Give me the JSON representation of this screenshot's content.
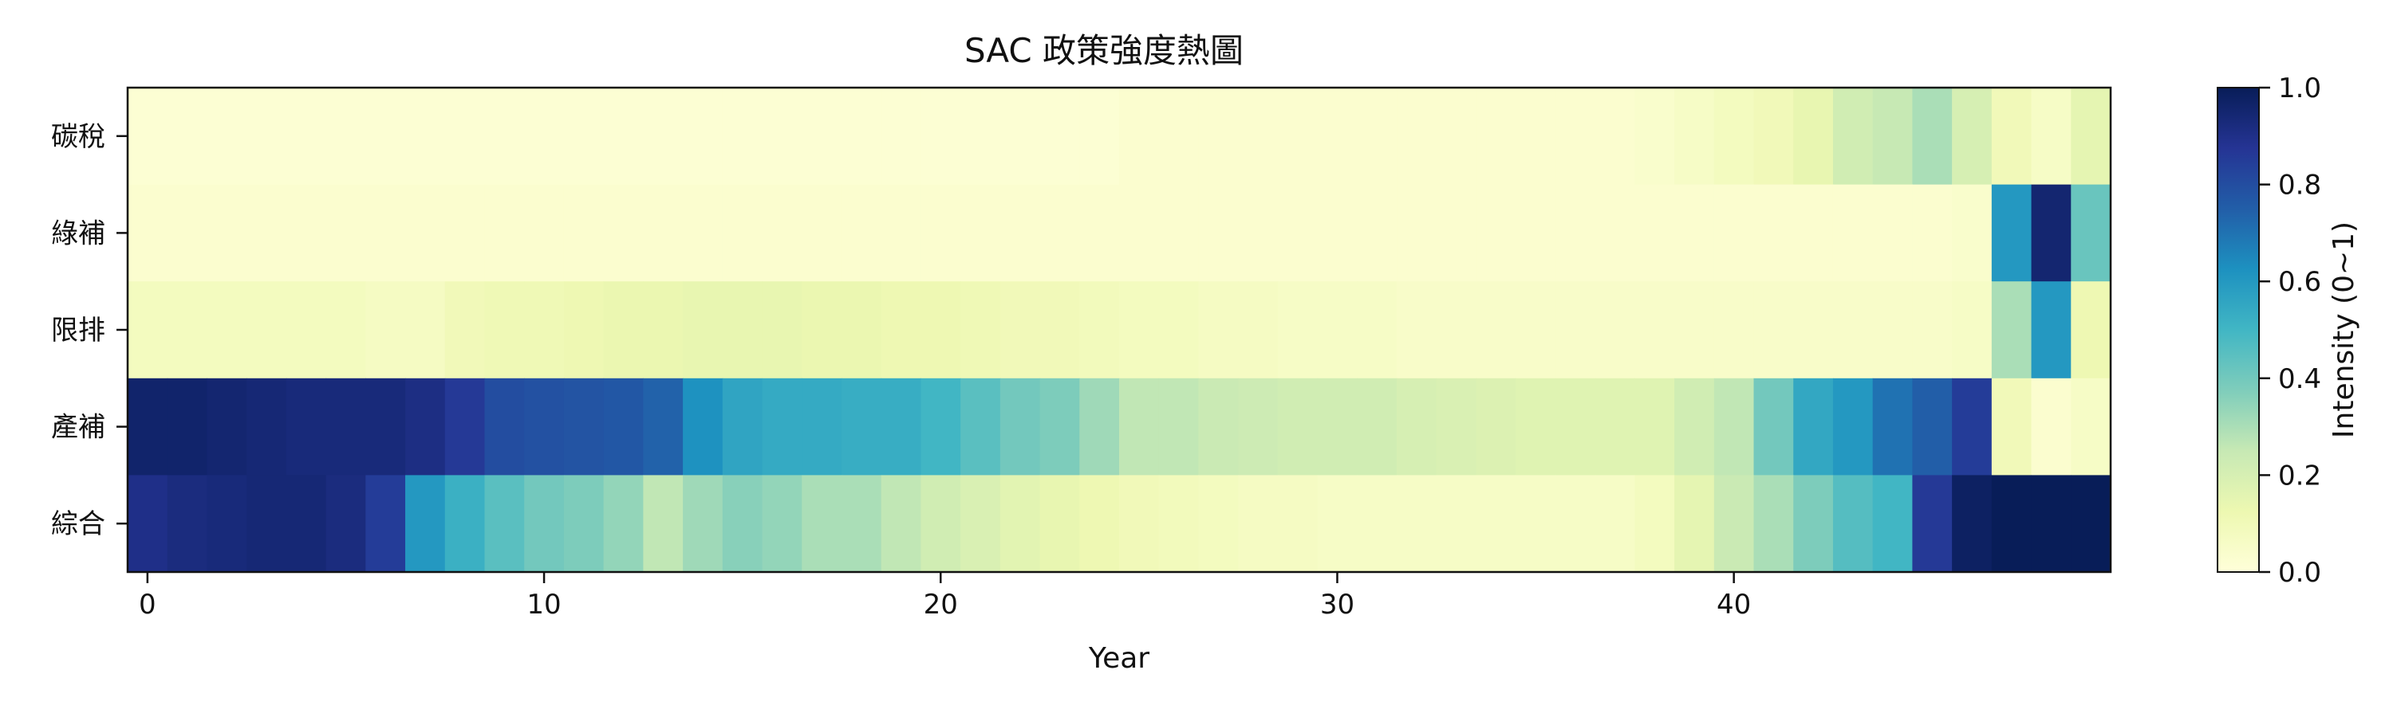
{
  "chart_data": {
    "type": "heatmap",
    "title": "SAC 政策強度熱圖",
    "xlabel": "Year",
    "ylabel": "",
    "x_ticks": [
      0,
      10,
      20,
      30,
      40
    ],
    "x_range": [
      0,
      49
    ],
    "rows": [
      "碳稅",
      "綠補",
      "限排",
      "產補",
      "綜合"
    ],
    "colorbar": {
      "label": "Intensity (0~1)",
      "range": [
        0.0,
        1.0
      ],
      "ticks": [
        "0.0",
        "0.2",
        "0.4",
        "0.6",
        "0.8",
        "1.0"
      ],
      "colormap": "YlGnBu"
    },
    "values": [
      [
        0.02,
        0.02,
        0.02,
        0.02,
        0.02,
        0.02,
        0.02,
        0.02,
        0.02,
        0.02,
        0.02,
        0.02,
        0.02,
        0.02,
        0.02,
        0.02,
        0.02,
        0.02,
        0.02,
        0.02,
        0.02,
        0.02,
        0.02,
        0.02,
        0.02,
        0.03,
        0.03,
        0.03,
        0.03,
        0.03,
        0.03,
        0.03,
        0.03,
        0.03,
        0.03,
        0.03,
        0.03,
        0.03,
        0.04,
        0.06,
        0.08,
        0.1,
        0.14,
        0.22,
        0.25,
        0.3,
        0.2,
        0.1,
        0.06,
        0.15
      ],
      [
        0.03,
        0.03,
        0.03,
        0.03,
        0.03,
        0.03,
        0.03,
        0.03,
        0.03,
        0.03,
        0.03,
        0.03,
        0.03,
        0.03,
        0.03,
        0.03,
        0.03,
        0.03,
        0.03,
        0.03,
        0.03,
        0.03,
        0.03,
        0.03,
        0.03,
        0.03,
        0.03,
        0.03,
        0.03,
        0.03,
        0.03,
        0.03,
        0.03,
        0.03,
        0.03,
        0.03,
        0.03,
        0.03,
        0.03,
        0.03,
        0.03,
        0.03,
        0.03,
        0.03,
        0.03,
        0.03,
        0.04,
        0.6,
        0.95,
        0.42
      ],
      [
        0.08,
        0.08,
        0.08,
        0.08,
        0.08,
        0.08,
        0.07,
        0.07,
        0.1,
        0.11,
        0.11,
        0.12,
        0.13,
        0.13,
        0.14,
        0.14,
        0.14,
        0.13,
        0.13,
        0.12,
        0.12,
        0.11,
        0.1,
        0.1,
        0.09,
        0.08,
        0.08,
        0.07,
        0.07,
        0.06,
        0.06,
        0.06,
        0.05,
        0.05,
        0.05,
        0.05,
        0.05,
        0.05,
        0.05,
        0.05,
        0.05,
        0.05,
        0.05,
        0.05,
        0.05,
        0.05,
        0.06,
        0.3,
        0.6,
        0.12
      ],
      [
        0.96,
        0.96,
        0.95,
        0.94,
        0.93,
        0.93,
        0.93,
        0.91,
        0.86,
        0.8,
        0.79,
        0.78,
        0.77,
        0.74,
        0.62,
        0.56,
        0.54,
        0.54,
        0.53,
        0.53,
        0.5,
        0.45,
        0.4,
        0.38,
        0.32,
        0.26,
        0.26,
        0.24,
        0.23,
        0.22,
        0.22,
        0.22,
        0.2,
        0.19,
        0.18,
        0.17,
        0.17,
        0.17,
        0.17,
        0.22,
        0.26,
        0.4,
        0.55,
        0.6,
        0.7,
        0.75,
        0.85,
        0.1,
        0.03,
        0.06
      ],
      [
        0.9,
        0.92,
        0.93,
        0.94,
        0.94,
        0.92,
        0.85,
        0.6,
        0.52,
        0.45,
        0.4,
        0.38,
        0.34,
        0.26,
        0.32,
        0.36,
        0.34,
        0.3,
        0.3,
        0.26,
        0.22,
        0.19,
        0.16,
        0.14,
        0.12,
        0.1,
        0.09,
        0.08,
        0.07,
        0.07,
        0.06,
        0.06,
        0.06,
        0.06,
        0.06,
        0.06,
        0.06,
        0.06,
        0.08,
        0.15,
        0.24,
        0.3,
        0.38,
        0.46,
        0.5,
        0.86,
        0.98,
        1.0,
        1.0,
        1.0
      ]
    ]
  }
}
